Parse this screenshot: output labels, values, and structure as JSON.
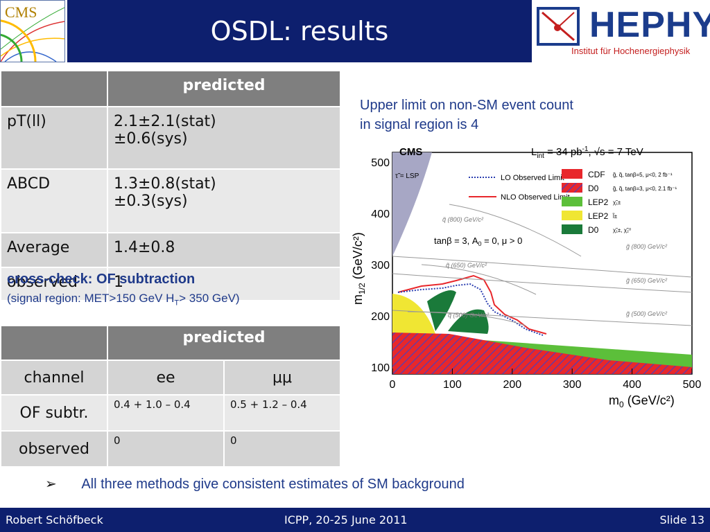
{
  "header": {
    "title": "OSDL: results",
    "cms_logo_text": "CMS",
    "hephy_logo_text": "HEPHY",
    "hephy_subtitle": "Institut für Hochenergiephysik"
  },
  "table1": {
    "header": [
      "",
      "predicted"
    ],
    "rows": [
      {
        "label": "pT(ll)",
        "line1": "2.1±2.1(stat)",
        "line2": "±0.6(sys)"
      },
      {
        "label": "ABCD",
        "line1": "1.3±0.8(stat)",
        "line2": "±0.3(sys)"
      },
      {
        "label": "Average",
        "line1": "1.4±0.8",
        "line2": ""
      },
      {
        "label": "observed",
        "line1": "1",
        "line2": ""
      }
    ]
  },
  "crosscheck": {
    "title": "cross-check: OF subtraction",
    "subtitle_pre": "(signal region: MET>150 GeV H",
    "subtitle_sub": "T",
    "subtitle_post": "> 350 GeV)"
  },
  "table2": {
    "header": [
      "",
      "predicted",
      ""
    ],
    "rows": [
      {
        "label": "channel",
        "ee": "ee",
        "mumu": "μμ"
      },
      {
        "label": "OF subtr.",
        "ee": "0.4 + 1.0 – 0.4",
        "mumu": "0.5 + 1.2 – 0.4"
      },
      {
        "label": "observed",
        "ee": "0",
        "mumu": "0"
      }
    ]
  },
  "upper_limit": {
    "line1": "Upper limit on non-SM event count",
    "line2": "in signal region is 4"
  },
  "plot": {
    "cms": "CMS",
    "lumi": "L",
    "lumi_sub": "int",
    "lumi_rest": " = 34 pb",
    "lumi_sup": "-1",
    "energy": ", √s = 7 TeV",
    "tau_lsp": "τ̃ = LSP",
    "lo_label": "LO Observed Limit",
    "nlo_label": "NLO Observed Limit",
    "tanb": "tanβ = 3,  A",
    "tanb_sub": "0",
    "tanb_rest": " = 0,  μ > 0",
    "legend": [
      {
        "name": "CDF",
        "desc": "g̃, q̃, tanβ=5, μ<0, 2 fb⁻¹",
        "color": "#e8272b"
      },
      {
        "name": "D0",
        "desc": "g̃, q̃, tanβ=3, μ<0, 2.1 fb⁻¹",
        "color": "#8b3fa0"
      },
      {
        "name": "LEP2",
        "desc": "χ̃₁±",
        "color": "#5cbf3a"
      },
      {
        "name": "LEP2",
        "desc": "l̃±",
        "color": "#f0e633"
      },
      {
        "name": "D0",
        "desc": "χ̃₁±, χ̃₂⁰",
        "color": "#1a7a3a"
      }
    ],
    "squark_labels": [
      "q̃ (800) GeV/c²",
      "q̃ (650) GeV/c²",
      "q̃ (500) GeV/c²"
    ],
    "gluino_labels": [
      "g̃ (800) GeV/c²",
      "g̃ (650) GeV/c²",
      "g̃ (500) GeV/c²"
    ],
    "xlabel": "m",
    "xlabel_sub": "0",
    "xlabel_rest": " (GeV/c²)",
    "ylabel": "m",
    "ylabel_sub": "1/2",
    "ylabel_rest": " (GeV/c²)",
    "xticks": [
      "0",
      "100",
      "200",
      "300",
      "400",
      "500"
    ],
    "yticks": [
      "100",
      "200",
      "300",
      "400",
      "500"
    ]
  },
  "bullet": {
    "marker": "➢",
    "text": "All three methods give  consistent estimates of SM background"
  },
  "footer": {
    "author": "Robert Schöfbeck",
    "conference": "ICPP, 20-25 June 2011",
    "slide": "Slide 13"
  },
  "colors": {
    "title_bar": "#0d1f6e",
    "text_blue": "#1f3a8a",
    "table_header": "#7f7f7f"
  }
}
